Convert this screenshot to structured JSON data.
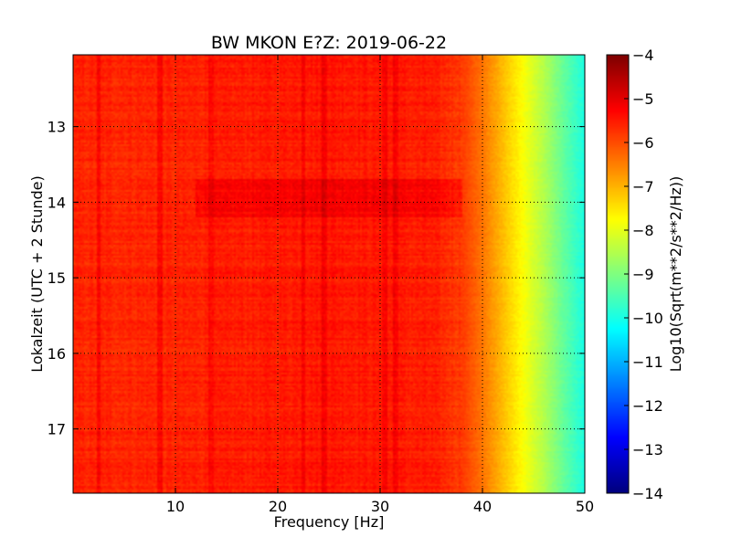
{
  "chart_data": {
    "type": "heatmap",
    "title": "BW MKON E?Z: 2019-06-22",
    "xlabel": "Frequency [Hz]",
    "ylabel": "Lokalzeit (UTC + 2 Stunde)",
    "xlim": [
      0,
      50
    ],
    "ylim": [
      12.05,
      17.85
    ],
    "y_inverted": true,
    "x_ticks": [
      10,
      20,
      30,
      40,
      50
    ],
    "y_ticks": [
      13,
      14,
      15,
      16,
      17
    ],
    "grid": true,
    "colormap": "jet",
    "colorbar": {
      "label": "Log10(Sqrt(m**2/s**2/Hz))",
      "vmin": -14,
      "vmax": -4,
      "ticks": [
        -4,
        -5,
        -6,
        -7,
        -8,
        -9,
        -10,
        -11,
        -12,
        -13,
        -14
      ]
    },
    "spectrum_profile": {
      "description": "mean log10 amplitude vs frequency",
      "frequency_hz": [
        0,
        5,
        10,
        15,
        20,
        25,
        30,
        35,
        38,
        40,
        42,
        44,
        46,
        48,
        50
      ],
      "log10_amplitude": [
        -5.6,
        -5.6,
        -5.6,
        -5.55,
        -5.5,
        -5.45,
        -5.5,
        -5.55,
        -5.8,
        -6.4,
        -7.1,
        -7.8,
        -8.5,
        -9.3,
        -10.0
      ]
    },
    "features": {
      "hot_time_band_hours": [
        13.7,
        14.2
      ],
      "dark_vertical_lines_hz": [
        2.5,
        8.5,
        13.5,
        22.5,
        24.5,
        30.5,
        31.5
      ]
    }
  }
}
